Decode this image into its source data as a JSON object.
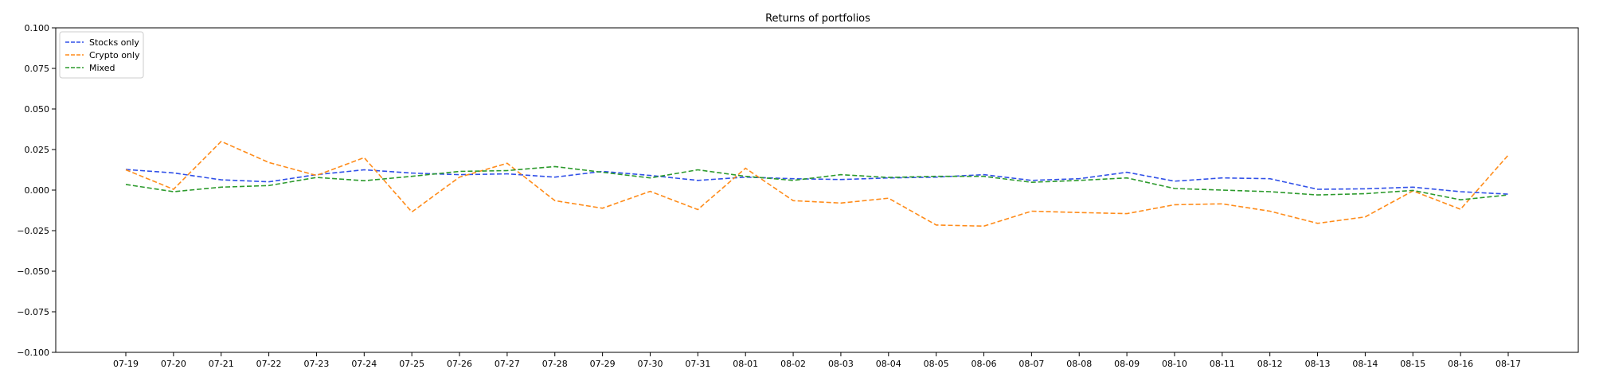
{
  "chart_data": {
    "type": "line",
    "title": "Returns of portfolios",
    "xlabel": "",
    "ylabel": "",
    "categories": [
      "07-19",
      "07-20",
      "07-21",
      "07-22",
      "07-23",
      "07-24",
      "07-25",
      "07-26",
      "07-27",
      "07-28",
      "07-29",
      "07-30",
      "07-31",
      "08-01",
      "08-02",
      "08-03",
      "08-04",
      "08-05",
      "08-06",
      "08-07",
      "08-08",
      "08-09",
      "08-10",
      "08-11",
      "08-12",
      "08-13",
      "08-14",
      "08-15",
      "08-16",
      "08-17"
    ],
    "ylim": [
      -0.1,
      0.1
    ],
    "yticks": [
      -0.1,
      -0.075,
      -0.05,
      -0.025,
      0.0,
      0.025,
      0.05,
      0.075,
      0.1
    ],
    "ytick_labels": [
      "−0.100",
      "−0.075",
      "−0.050",
      "−0.025",
      "0.000",
      "0.025",
      "0.050",
      "0.075",
      "0.100"
    ],
    "grid": false,
    "legend_position": "top-left",
    "series": [
      {
        "name": "Stocks only",
        "color": "#3050e8",
        "linestyle": "dashed",
        "values": [
          0.0127,
          0.0106,
          0.0063,
          0.0051,
          0.0095,
          0.0125,
          0.0105,
          0.0095,
          0.01,
          0.008,
          0.0115,
          0.009,
          0.006,
          0.008,
          0.007,
          0.0065,
          0.0075,
          0.008,
          0.0095,
          0.006,
          0.007,
          0.011,
          0.0055,
          0.0075,
          0.007,
          0.0005,
          0.0008,
          0.0018,
          -0.001,
          -0.0025
        ]
      },
      {
        "name": "Crypto only",
        "color": "#ff8c1a",
        "linestyle": "dashed",
        "values": [
          0.0125,
          0.0005,
          0.03,
          0.017,
          0.009,
          0.02,
          -0.0135,
          0.008,
          0.0165,
          -0.0065,
          -0.0112,
          -0.0008,
          -0.012,
          0.0135,
          -0.0065,
          -0.008,
          -0.005,
          -0.0215,
          -0.0222,
          -0.013,
          -0.0138,
          -0.0145,
          -0.009,
          -0.0085,
          -0.013,
          -0.0205,
          -0.0165,
          -0.0005,
          -0.0118,
          0.0215
        ]
      },
      {
        "name": "Mixed",
        "color": "#2c9a2c",
        "linestyle": "dashed",
        "values": [
          0.0035,
          -0.001,
          0.0018,
          0.0028,
          0.0078,
          0.0058,
          0.0085,
          0.0115,
          0.012,
          0.0145,
          0.011,
          0.0075,
          0.0125,
          0.0085,
          0.006,
          0.0095,
          0.0078,
          0.0085,
          0.0085,
          0.0048,
          0.006,
          0.0075,
          0.001,
          0.0,
          -0.001,
          -0.003,
          -0.0022,
          -0.0002,
          -0.006,
          -0.003
        ]
      }
    ]
  }
}
